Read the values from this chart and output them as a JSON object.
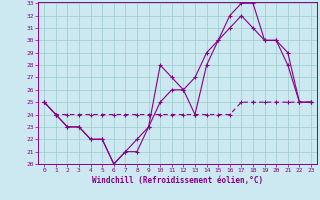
{
  "xlabel": "Windchill (Refroidissement éolien,°C)",
  "bg_color": "#cce8f0",
  "line_color": "#880088",
  "grid_color": "#99cccc",
  "xlim": [
    -0.5,
    23.5
  ],
  "ylim": [
    20,
    33
  ],
  "xticks": [
    0,
    1,
    2,
    3,
    4,
    5,
    6,
    7,
    8,
    9,
    10,
    11,
    12,
    13,
    14,
    15,
    16,
    17,
    18,
    19,
    20,
    21,
    22,
    23
  ],
  "yticks": [
    20,
    21,
    22,
    23,
    24,
    25,
    26,
    27,
    28,
    29,
    30,
    31,
    32,
    33
  ],
  "line1_x": [
    0,
    1,
    2,
    3,
    4,
    5,
    6,
    7,
    8,
    9,
    10,
    11,
    12,
    13,
    14,
    15,
    16,
    17,
    18,
    19,
    20,
    21,
    22,
    23
  ],
  "line1_y": [
    25,
    24,
    23,
    23,
    22,
    22,
    20,
    21,
    22,
    23,
    25,
    26,
    26,
    24,
    28,
    30,
    32,
    33,
    33,
    30,
    30,
    29,
    25,
    25
  ],
  "line2_x": [
    0,
    1,
    2,
    3,
    4,
    5,
    6,
    7,
    8,
    9,
    10,
    11,
    12,
    13,
    14,
    15,
    16,
    17,
    18,
    19,
    20,
    21,
    22,
    23
  ],
  "line2_y": [
    25,
    24,
    23,
    23,
    22,
    22,
    20,
    21,
    21,
    23,
    28,
    27,
    26,
    27,
    29,
    30,
    31,
    32,
    31,
    30,
    30,
    28,
    25,
    25
  ],
  "line3_x": [
    0,
    1,
    2,
    3,
    4,
    5,
    6,
    7,
    8,
    9,
    10,
    11,
    12,
    13,
    14,
    15,
    16,
    17,
    18,
    19,
    20,
    21,
    22,
    23
  ],
  "line3_y": [
    25,
    24,
    24,
    24,
    24,
    24,
    24,
    24,
    24,
    24,
    24,
    24,
    24,
    24,
    24,
    24,
    24,
    25,
    25,
    25,
    25,
    25,
    25,
    25
  ]
}
